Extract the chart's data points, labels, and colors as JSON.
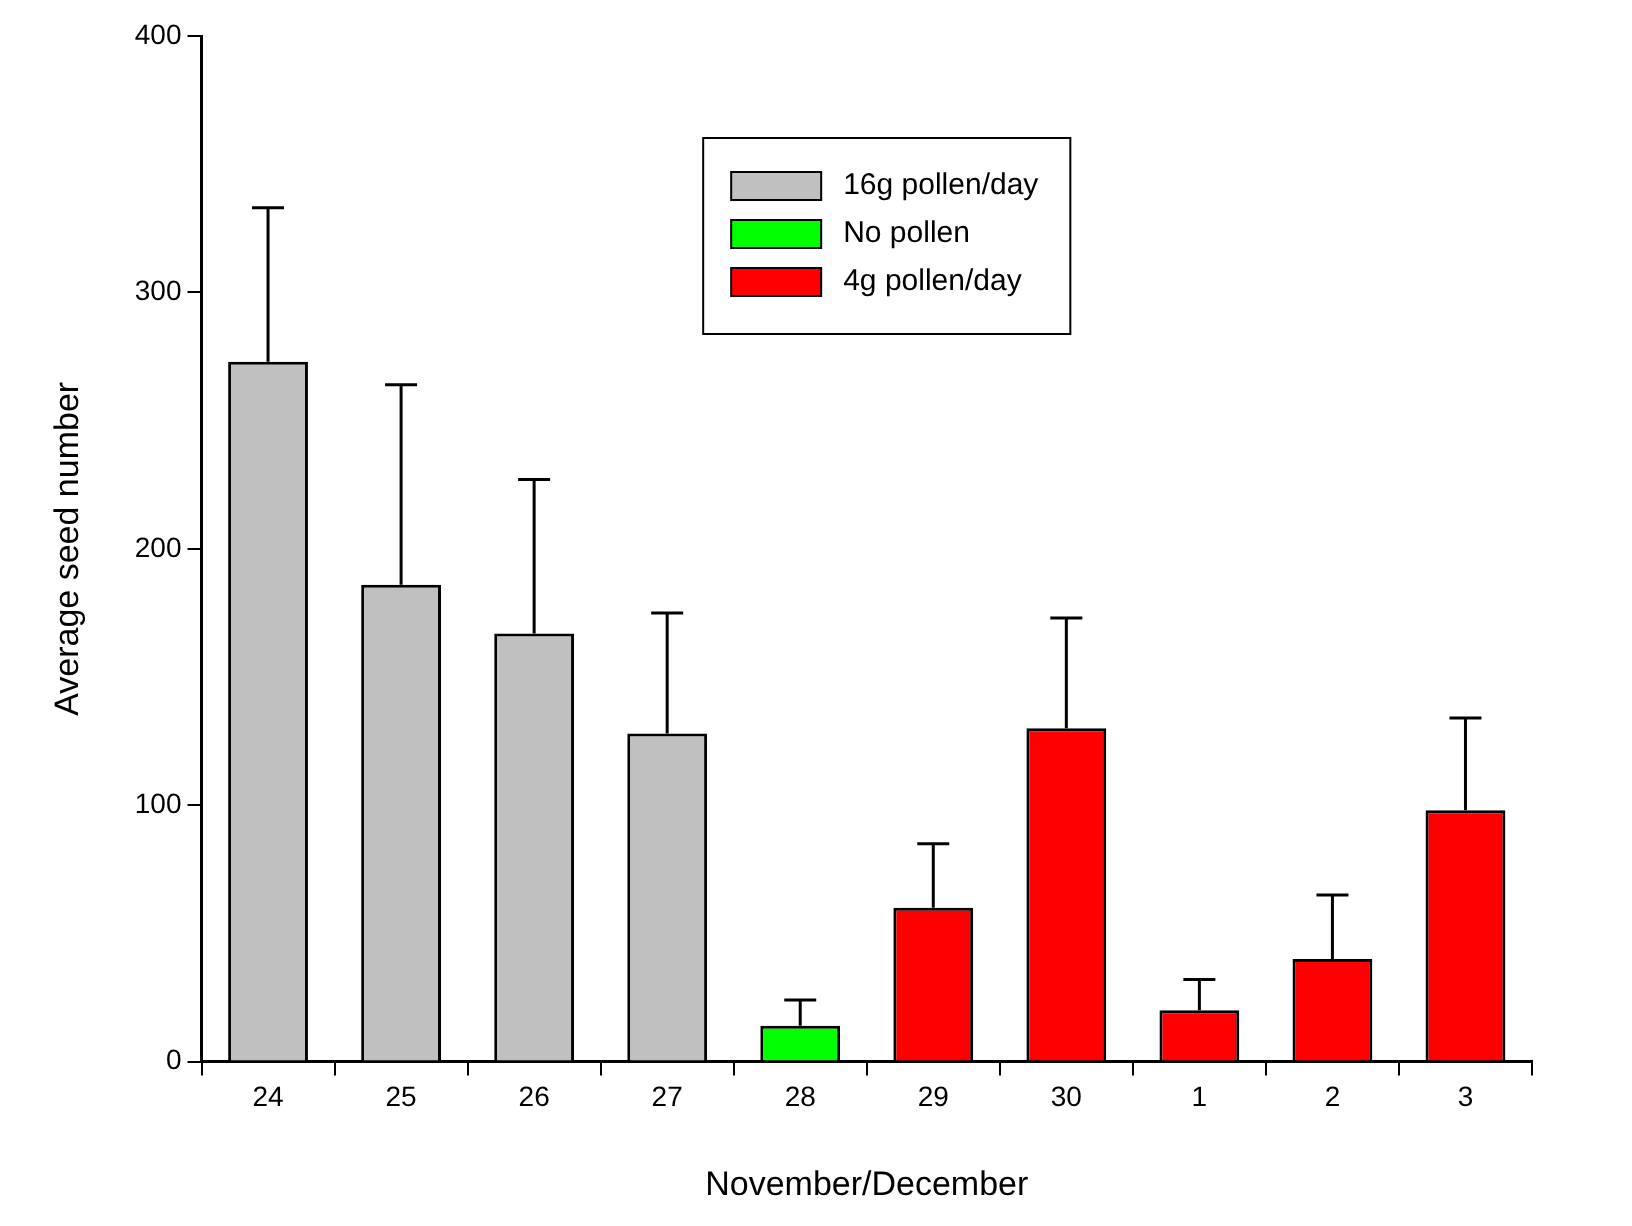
{
  "chart_data": {
    "type": "bar",
    "xlabel": "November/December",
    "ylabel": "Average seed number",
    "categories": [
      "24",
      "25",
      "26",
      "27",
      "28",
      "29",
      "30",
      "1",
      "2",
      "3"
    ],
    "series": [
      {
        "name": "16g pollen/day",
        "color": "#c0c0c0",
        "values": [
          273,
          186,
          167,
          128,
          null,
          null,
          null,
          null,
          null,
          null
        ],
        "errors": [
          [
            273,
            333
          ],
          [
            186,
            264
          ],
          [
            167,
            227
          ],
          [
            128,
            175
          ],
          null,
          null,
          null,
          null,
          null,
          null
        ]
      },
      {
        "name": "No pollen",
        "color": "#00ff00",
        "values": [
          null,
          null,
          null,
          null,
          14,
          null,
          null,
          null,
          null,
          null
        ],
        "errors": [
          null,
          null,
          null,
          null,
          [
            14,
            24
          ],
          null,
          null,
          null,
          null,
          null
        ]
      },
      {
        "name": "4g pollen/day",
        "color": "#ff0000",
        "values": [
          null,
          null,
          null,
          null,
          null,
          60,
          130,
          20,
          40,
          98
        ],
        "errors": [
          null,
          null,
          null,
          null,
          null,
          [
            60,
            85
          ],
          [
            130,
            173
          ],
          [
            20,
            32
          ],
          [
            40,
            65
          ],
          [
            98,
            134
          ]
        ]
      }
    ],
    "ylim": [
      0,
      400
    ],
    "yticks": [
      0,
      100,
      200,
      300,
      400
    ],
    "grid": false,
    "legend": "top"
  }
}
